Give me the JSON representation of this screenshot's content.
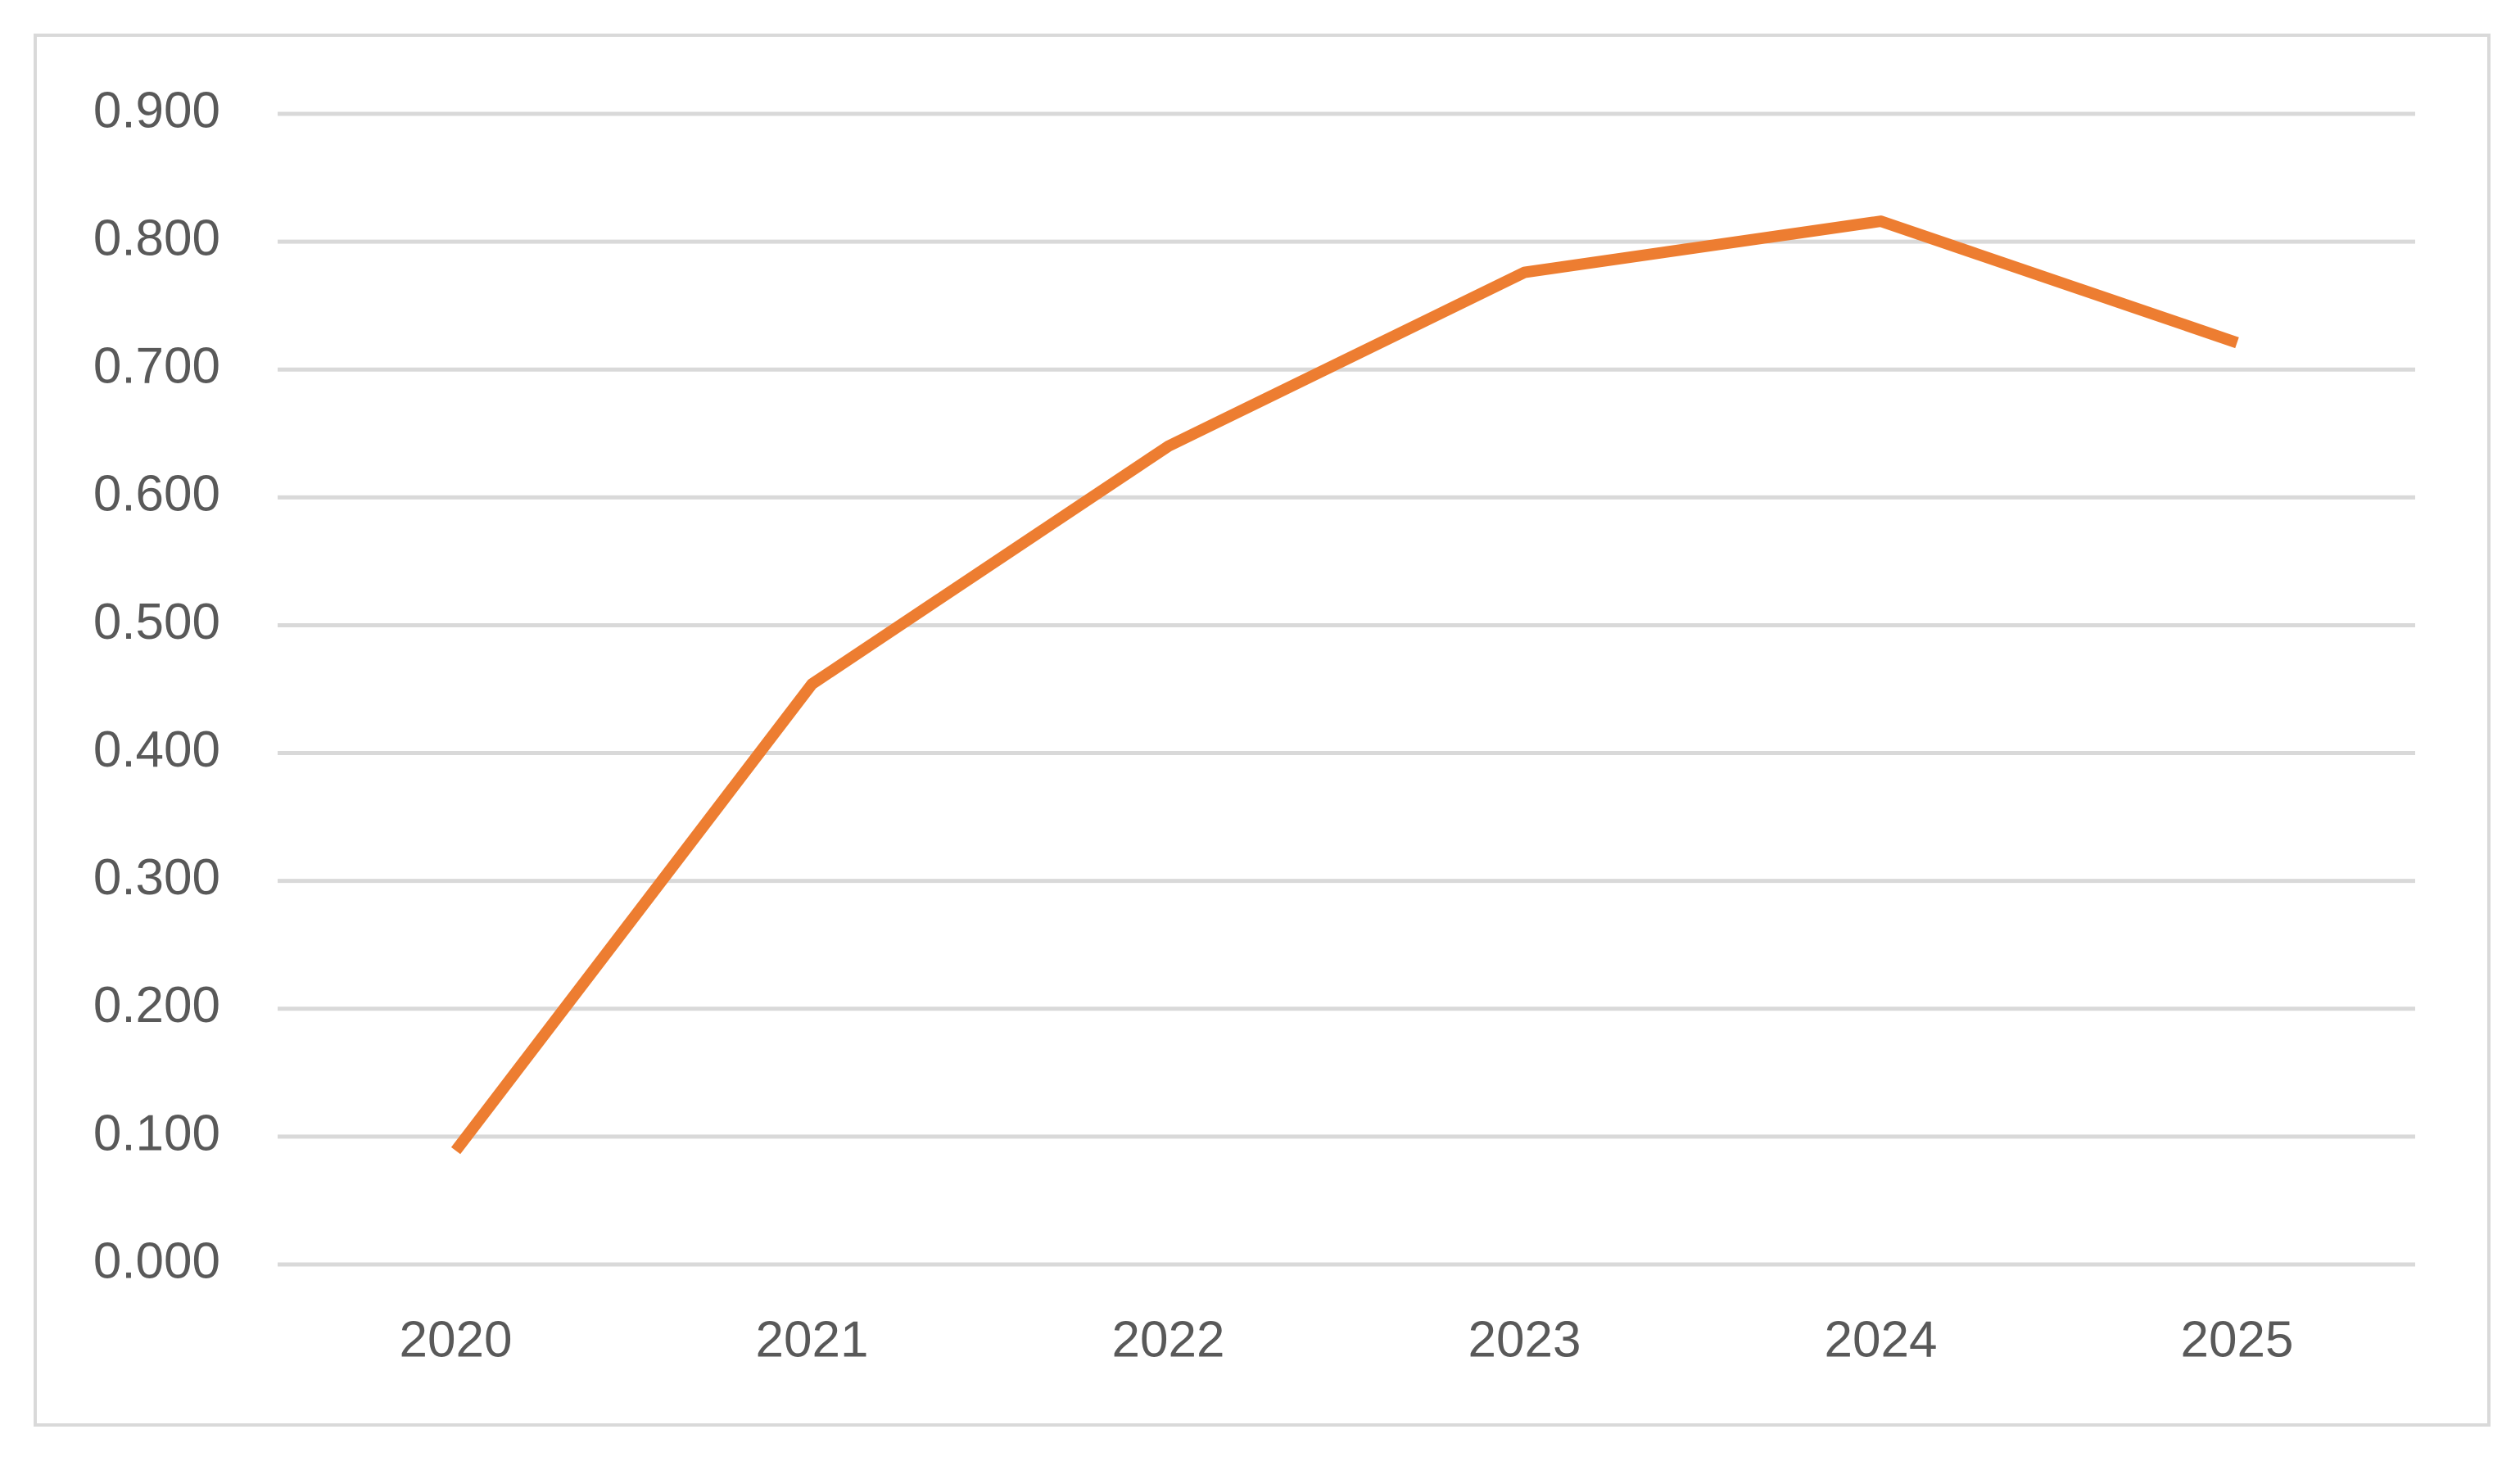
{
  "chart_data": {
    "type": "line",
    "categories": [
      "2020",
      "2021",
      "2022",
      "2023",
      "2024",
      "2025"
    ],
    "series": [
      {
        "color": "#ed7d31",
        "values": [
          0.089,
          0.454,
          0.64,
          0.776,
          0.816,
          0.721
        ]
      }
    ],
    "ylim": [
      0,
      0.9
    ],
    "yticks": [
      {
        "value": 0,
        "label": "0.000"
      },
      {
        "value": 0.1,
        "label": "0.100"
      },
      {
        "value": 0.2,
        "label": "0.200"
      },
      {
        "value": 0.3,
        "label": "0.300"
      },
      {
        "value": 0.4,
        "label": "0.400"
      },
      {
        "value": 0.5,
        "label": "0.500"
      },
      {
        "value": 0.6,
        "label": "0.600"
      },
      {
        "value": 0.7,
        "label": "0.700"
      },
      {
        "value": 0.8,
        "label": "0.800"
      },
      {
        "value": 0.9,
        "label": "0.900"
      }
    ],
    "grid": true
  }
}
